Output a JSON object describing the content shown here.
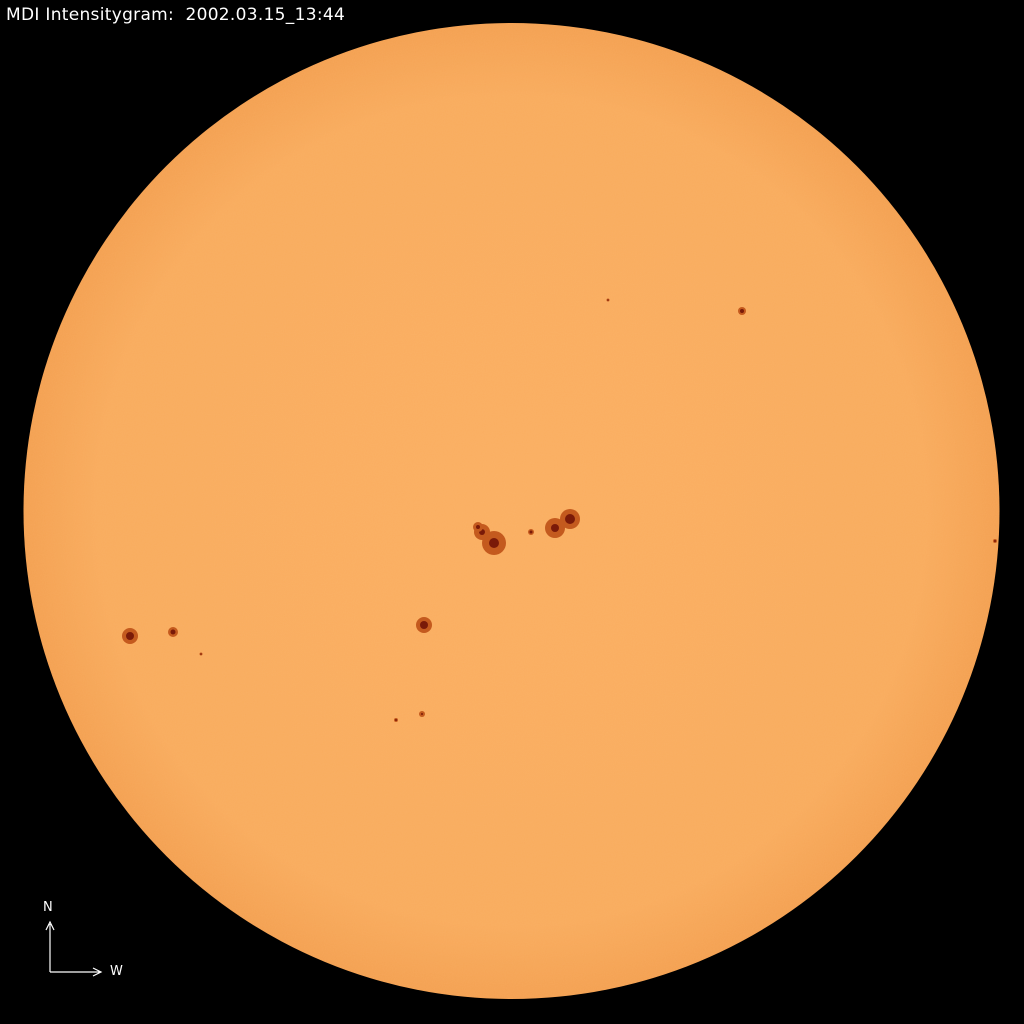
{
  "title": "MDI Intensitygram:  2002.03.15_13:44",
  "compass": {
    "north": "N",
    "west": "W"
  },
  "colors": {
    "disk": "#f9ab5c",
    "limb": "#f2a050",
    "umbra": "#7a1a08",
    "penumbra": "#c45a1e",
    "background": "#000000"
  }
}
